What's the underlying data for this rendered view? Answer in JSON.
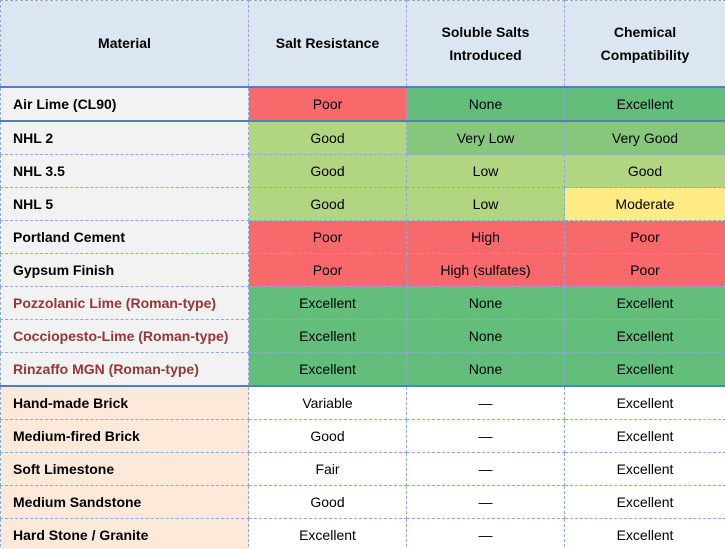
{
  "table": {
    "header": [
      "Material",
      "Salt Resistance",
      "Soluble Salts Introduced",
      "Chemical Compatibility"
    ],
    "rows": [
      [
        "Air Lime (CL90)",
        "Poor",
        "None",
        "Excellent"
      ],
      [
        "NHL 2",
        "Good",
        "Very Low",
        "Very Good"
      ],
      [
        "NHL 3.5",
        "Good",
        "Low",
        "Good"
      ],
      [
        "NHL 5",
        "Good",
        "Low",
        "Moderate"
      ],
      [
        "Portland Cement",
        "Poor",
        "High",
        "Poor"
      ],
      [
        "Gypsum Finish",
        "Poor",
        "High (sulfates)",
        "Poor"
      ],
      [
        "Pozzolanic Lime (Roman-type)",
        "Excellent",
        "None",
        "Excellent"
      ],
      [
        "Cocciopesto-Lime (Roman-type)",
        "Excellent",
        "None",
        "Excellent"
      ],
      [
        "Rinzaffo MGN (Roman-type)",
        "Excellent",
        "None",
        "Excellent"
      ],
      [
        "Hand-made Brick",
        "Variable",
        "—",
        "Excellent"
      ],
      [
        "Medium-fired Brick",
        "Good",
        "—",
        "Excellent"
      ],
      [
        "Soft Limestone",
        "Fair",
        "—",
        "Excellent"
      ],
      [
        "Medium Sandstone",
        "Good",
        "—",
        "Excellent"
      ],
      [
        "Hard Stone / Granite",
        "Excellent",
        "—",
        "Excellent"
      ]
    ]
  }
}
